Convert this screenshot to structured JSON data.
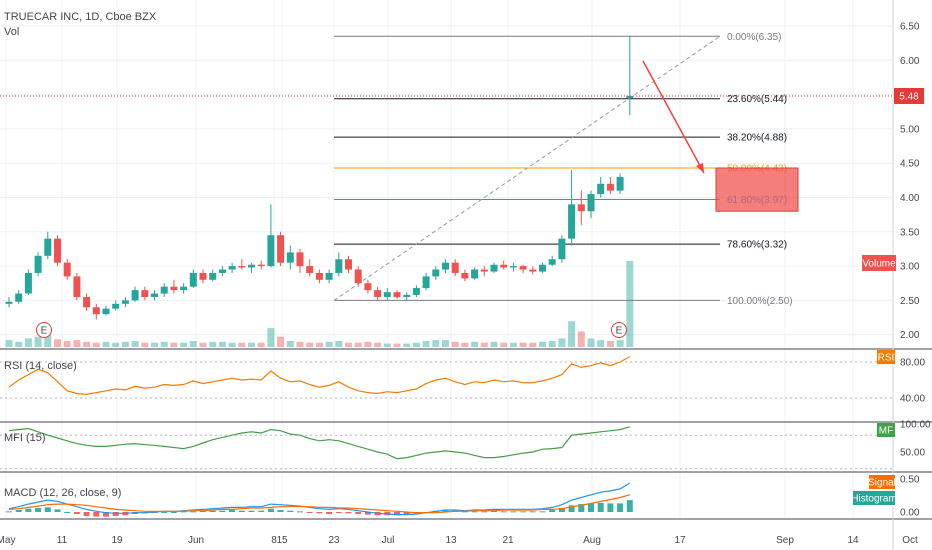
{
  "header": {
    "symbol_line": "TRUECAR INC, 1D, Cboe BZX",
    "vol_label": "Vol"
  },
  "colors": {
    "up": "#26a69a",
    "down": "#ef5350",
    "rsi": "#f57c00",
    "mfi": "#43a047",
    "macd": "#2196f3",
    "signal": "#ff6d00",
    "price_line": "#e53935",
    "fib_orange": "#ff9800",
    "fib_blue": "#2196f3",
    "grid": "#eef0f4"
  },
  "badges": {
    "price": "5.48",
    "volume": "Volume",
    "rsi": "RSI",
    "mfi": "MF",
    "signal": "Signal",
    "histogram": "Histogram",
    "earnings": "E"
  },
  "chart_data": [
    {
      "type": "candlestick",
      "title": "TRUECAR INC, 1D, Cboe BZX",
      "ylim": [
        1.8,
        6.65
      ],
      "y_ticks": [
        "6.50",
        "6.00",
        "5.50",
        "5.00",
        "4.50",
        "4.00",
        "3.50",
        "3.00",
        "2.50",
        "2.00"
      ],
      "x_ticks": [
        "May",
        "11",
        "19",
        "Jun",
        "8",
        "15",
        "23",
        "Jul",
        "13",
        "21",
        "Aug",
        "17",
        "Sep",
        "14",
        "Oct"
      ],
      "last_price": 5.48,
      "ohlc": [
        [
          2.45,
          2.55,
          2.4,
          2.48
        ],
        [
          2.48,
          2.65,
          2.45,
          2.6
        ],
        [
          2.6,
          2.95,
          2.58,
          2.9
        ],
        [
          2.9,
          3.2,
          2.85,
          3.15
        ],
        [
          3.15,
          3.5,
          3.1,
          3.4
        ],
        [
          3.4,
          3.45,
          3.0,
          3.05
        ],
        [
          3.05,
          3.1,
          2.8,
          2.85
        ],
        [
          2.85,
          2.9,
          2.5,
          2.55
        ],
        [
          2.55,
          2.6,
          2.35,
          2.4
        ],
        [
          2.4,
          2.45,
          2.22,
          2.3
        ],
        [
          2.3,
          2.42,
          2.28,
          2.38
        ],
        [
          2.38,
          2.5,
          2.35,
          2.45
        ],
        [
          2.45,
          2.55,
          2.4,
          2.5
        ],
        [
          2.5,
          2.7,
          2.48,
          2.65
        ],
        [
          2.65,
          2.7,
          2.5,
          2.55
        ],
        [
          2.55,
          2.65,
          2.5,
          2.6
        ],
        [
          2.6,
          2.75,
          2.55,
          2.7
        ],
        [
          2.7,
          2.8,
          2.6,
          2.65
        ],
        [
          2.65,
          2.75,
          2.6,
          2.7
        ],
        [
          2.7,
          2.95,
          2.68,
          2.9
        ],
        [
          2.9,
          2.95,
          2.75,
          2.8
        ],
        [
          2.8,
          2.95,
          2.78,
          2.9
        ],
        [
          2.9,
          3.0,
          2.85,
          2.95
        ],
        [
          2.95,
          3.05,
          2.9,
          3.0
        ],
        [
          3.0,
          3.1,
          2.95,
          2.98
        ],
        [
          2.98,
          3.05,
          2.9,
          3.02
        ],
        [
          3.02,
          3.08,
          2.95,
          3.0
        ],
        [
          3.0,
          3.9,
          2.98,
          3.45
        ],
        [
          3.45,
          3.5,
          3.0,
          3.05
        ],
        [
          3.05,
          3.3,
          2.95,
          3.2
        ],
        [
          3.2,
          3.25,
          2.9,
          3.0
        ],
        [
          3.0,
          3.1,
          2.85,
          2.9
        ],
        [
          2.9,
          2.95,
          2.75,
          2.8
        ],
        [
          2.8,
          2.95,
          2.75,
          2.9
        ],
        [
          2.9,
          3.2,
          2.85,
          3.1
        ],
        [
          3.1,
          3.15,
          2.9,
          2.95
        ],
        [
          2.95,
          3.0,
          2.7,
          2.75
        ],
        [
          2.75,
          2.8,
          2.6,
          2.65
        ],
        [
          2.65,
          2.7,
          2.5,
          2.55
        ],
        [
          2.55,
          2.68,
          2.5,
          2.62
        ],
        [
          2.62,
          2.65,
          2.52,
          2.55
        ],
        [
          2.55,
          2.62,
          2.5,
          2.58
        ],
        [
          2.58,
          2.72,
          2.55,
          2.68
        ],
        [
          2.68,
          2.9,
          2.65,
          2.85
        ],
        [
          2.85,
          3.0,
          2.8,
          2.95
        ],
        [
          2.95,
          3.1,
          2.9,
          3.05
        ],
        [
          3.05,
          3.1,
          2.85,
          2.9
        ],
        [
          2.9,
          2.95,
          2.78,
          2.82
        ],
        [
          2.82,
          2.98,
          2.8,
          2.95
        ],
        [
          2.95,
          3.0,
          2.85,
          2.92
        ],
        [
          2.92,
          3.05,
          2.9,
          3.02
        ],
        [
          3.02,
          3.08,
          2.95,
          2.98
        ],
        [
          2.98,
          3.05,
          2.92,
          3.0
        ],
        [
          3.0,
          3.02,
          2.9,
          2.95
        ],
        [
          2.95,
          3.0,
          2.88,
          2.92
        ],
        [
          2.92,
          3.05,
          2.9,
          3.02
        ],
        [
          3.02,
          3.15,
          3.0,
          3.1
        ],
        [
          3.1,
          3.45,
          3.05,
          3.4
        ],
        [
          3.4,
          4.4,
          3.3,
          3.9
        ],
        [
          3.9,
          4.1,
          3.6,
          3.8
        ],
        [
          3.8,
          4.1,
          3.7,
          4.05
        ],
        [
          4.05,
          4.3,
          4.0,
          4.2
        ],
        [
          4.2,
          4.3,
          4.05,
          4.1
        ],
        [
          4.1,
          4.35,
          4.05,
          4.3
        ],
        [
          5.45,
          6.35,
          5.2,
          5.48
        ]
      ],
      "volume_relative": [
        0.08,
        0.06,
        0.1,
        0.12,
        0.14,
        0.09,
        0.07,
        0.08,
        0.06,
        0.05,
        0.06,
        0.05,
        0.06,
        0.07,
        0.05,
        0.05,
        0.06,
        0.05,
        0.05,
        0.07,
        0.05,
        0.06,
        0.06,
        0.05,
        0.05,
        0.05,
        0.05,
        0.22,
        0.12,
        0.07,
        0.06,
        0.05,
        0.05,
        0.06,
        0.07,
        0.05,
        0.05,
        0.06,
        0.05,
        0.04,
        0.04,
        0.04,
        0.05,
        0.07,
        0.08,
        0.08,
        0.06,
        0.05,
        0.06,
        0.05,
        0.06,
        0.05,
        0.05,
        0.05,
        0.05,
        0.06,
        0.07,
        0.1,
        0.3,
        0.18,
        0.1,
        0.08,
        0.07,
        0.08,
        1.0
      ],
      "fibonacci": [
        {
          "label": "0.00%(6.35)",
          "value": 6.35,
          "color": "#787b86"
        },
        {
          "label": "23.60%(5.44)",
          "value": 5.44,
          "color": "#131722"
        },
        {
          "label": "38.20%(4.88)",
          "value": 4.88,
          "color": "#131722"
        },
        {
          "label": "50.00%(4.43)",
          "value": 4.43,
          "color": "#ff9800"
        },
        {
          "label": "61.80%(3.97)",
          "value": 3.97,
          "color": "#2196f3"
        },
        {
          "label": "78.60%(3.32)",
          "value": 3.32,
          "color": "#131722"
        },
        {
          "label": "100.00%(2.50)",
          "value": 2.5,
          "color": "#787b86"
        }
      ],
      "target_zone": [
        3.8,
        4.43
      ]
    },
    {
      "type": "line",
      "title": "RSI (14, close)",
      "ylim": [
        25,
        90
      ],
      "y_ticks": [
        "80.00",
        "40.00"
      ],
      "values": [
        52,
        60,
        66,
        72,
        68,
        58,
        48,
        45,
        44,
        46,
        48,
        50,
        49,
        53,
        51,
        52,
        55,
        54,
        55,
        59,
        56,
        58,
        60,
        62,
        60,
        61,
        60,
        70,
        62,
        58,
        59,
        55,
        52,
        54,
        58,
        52,
        48,
        46,
        45,
        47,
        46,
        48,
        50,
        56,
        60,
        62,
        58,
        55,
        58,
        57,
        60,
        58,
        59,
        57,
        57,
        59,
        62,
        66,
        78,
        74,
        76,
        79,
        76,
        80,
        86
      ]
    },
    {
      "type": "line",
      "title": "MFI (15)",
      "ylim": [
        20,
        100
      ],
      "y_ticks": [
        "100.00",
        "50.00"
      ],
      "values": [
        88,
        90,
        92,
        86,
        80,
        75,
        70,
        65,
        62,
        60,
        60,
        62,
        64,
        65,
        63,
        62,
        60,
        58,
        56,
        60,
        66,
        72,
        76,
        80,
        84,
        86,
        84,
        90,
        88,
        82,
        80,
        74,
        70,
        72,
        70,
        65,
        60,
        55,
        50,
        46,
        38,
        40,
        44,
        48,
        50,
        52,
        50,
        48,
        44,
        40,
        40,
        42,
        45,
        48,
        50,
        55,
        56,
        58,
        80,
        82,
        84,
        86,
        88,
        90,
        95
      ]
    },
    {
      "type": "line",
      "title": "MACD (12, 26, close, 9)",
      "ylim": [
        -0.08,
        0.48
      ],
      "y_ticks": [
        "0.50",
        "0.00"
      ],
      "macd": [
        0.05,
        0.08,
        0.12,
        0.15,
        0.18,
        0.16,
        0.12,
        0.08,
        0.04,
        0.01,
        -0.01,
        -0.02,
        -0.02,
        -0.01,
        -0.01,
        0.0,
        0.01,
        0.01,
        0.02,
        0.03,
        0.04,
        0.05,
        0.06,
        0.07,
        0.07,
        0.08,
        0.08,
        0.12,
        0.11,
        0.1,
        0.09,
        0.07,
        0.05,
        0.04,
        0.05,
        0.04,
        0.02,
        0.0,
        -0.02,
        -0.03,
        -0.04,
        -0.04,
        -0.03,
        -0.01,
        0.01,
        0.03,
        0.03,
        0.02,
        0.03,
        0.03,
        0.04,
        0.04,
        0.04,
        0.04,
        0.04,
        0.05,
        0.07,
        0.11,
        0.18,
        0.22,
        0.26,
        0.3,
        0.32,
        0.35,
        0.44
      ],
      "signal": [
        0.04,
        0.05,
        0.07,
        0.09,
        0.11,
        0.12,
        0.12,
        0.11,
        0.1,
        0.08,
        0.06,
        0.04,
        0.03,
        0.02,
        0.01,
        0.01,
        0.01,
        0.01,
        0.01,
        0.02,
        0.02,
        0.03,
        0.04,
        0.04,
        0.05,
        0.06,
        0.06,
        0.07,
        0.08,
        0.08,
        0.08,
        0.08,
        0.07,
        0.07,
        0.06,
        0.06,
        0.05,
        0.04,
        0.03,
        0.02,
        0.01,
        0.0,
        -0.01,
        -0.01,
        -0.01,
        0.0,
        0.01,
        0.01,
        0.02,
        0.02,
        0.02,
        0.03,
        0.03,
        0.03,
        0.03,
        0.04,
        0.04,
        0.05,
        0.08,
        0.1,
        0.13,
        0.16,
        0.19,
        0.22,
        0.26
      ]
    }
  ]
}
